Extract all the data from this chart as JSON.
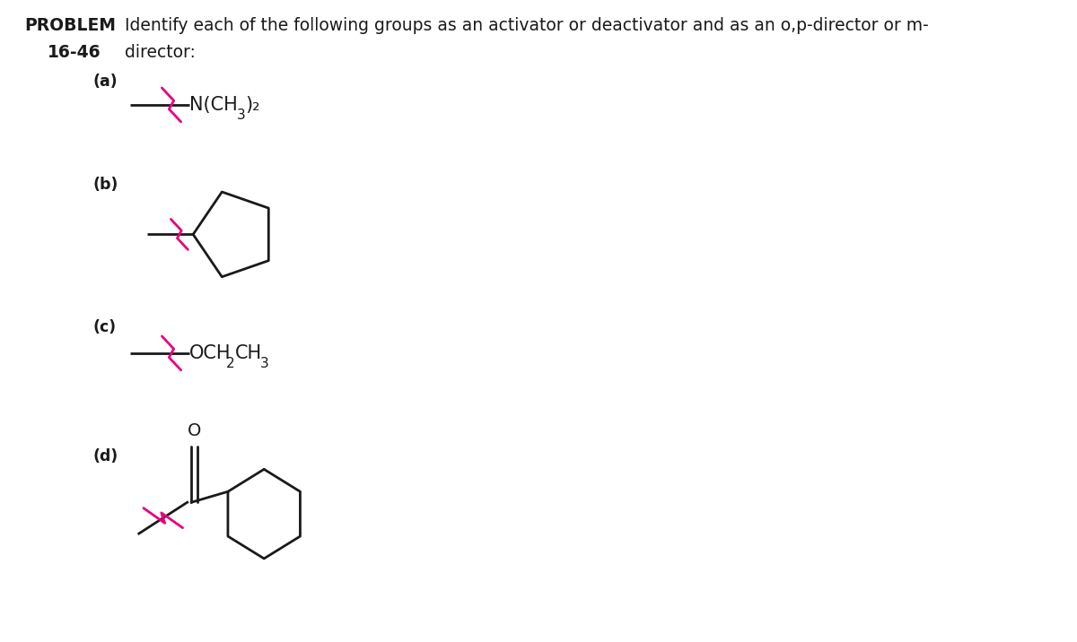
{
  "bg_color": "#ffffff",
  "wavy_color": "#e8007f",
  "line_color": "#1a1a1a",
  "text_color": "#1a1a1a",
  "header_bold": "PROBLEM",
  "header_text": " Identify each of the following groups as an activator or deactivator and as an o,p-director or m-",
  "subheader_bold": "16-46",
  "subheader_text": " director:",
  "header_fontsize": 13.5,
  "label_fontsize": 12.5
}
